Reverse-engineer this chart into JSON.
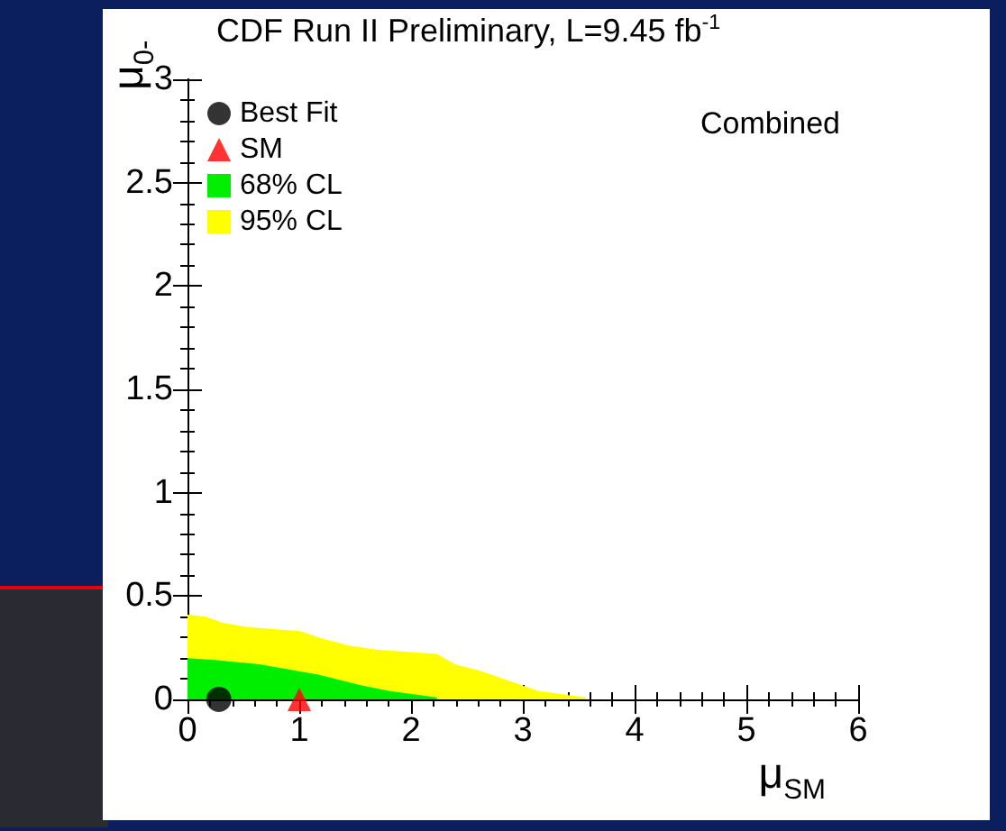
{
  "chart_data": {
    "type": "area",
    "title": "CDF Run II Preliminary, L=9.45 fb$^{-1}$",
    "xlabel": "μ$_{SM}$",
    "ylabel": "μ$_{0-}$",
    "annotations": [
      "Combined"
    ],
    "xlim": [
      0,
      6
    ],
    "xticks": [
      0,
      1,
      2,
      3,
      4,
      5,
      6
    ],
    "ylim": [
      0,
      3
    ],
    "yticks": [
      0,
      0.5,
      1,
      1.5,
      2,
      2.5,
      3
    ],
    "grid": false,
    "legend": "top left",
    "series": [
      {
        "name": "Best Fit",
        "type": "scatter",
        "marker": "circle",
        "color": "#000000",
        "x": [
          0.28
        ],
        "values": [
          0
        ]
      },
      {
        "name": "SM",
        "type": "scatter",
        "marker": "triangle",
        "color": "#ff0000",
        "x": [
          1
        ],
        "values": [
          0
        ]
      },
      {
        "name": "68% CL",
        "color": "#00ee00",
        "x": [
          0,
          0.27,
          0.64,
          0.85,
          1.17,
          1.54,
          1.81,
          2.23
        ],
        "values": [
          0.2,
          0.19,
          0.17,
          0.15,
          0.12,
          0.07,
          0.04,
          0.01
        ]
      },
      {
        "name": "95% CL",
        "color": "#ffff00",
        "x": [
          0,
          0.16,
          0.32,
          0.53,
          1.01,
          1.17,
          1.44,
          1.7,
          2.23,
          2.39,
          2.61,
          2.93,
          3.14,
          3.56
        ],
        "values": [
          0.41,
          0.4,
          0.37,
          0.35,
          0.33,
          0.3,
          0.26,
          0.24,
          0.22,
          0.17,
          0.14,
          0.08,
          0.04,
          0.01
        ]
      }
    ]
  }
}
